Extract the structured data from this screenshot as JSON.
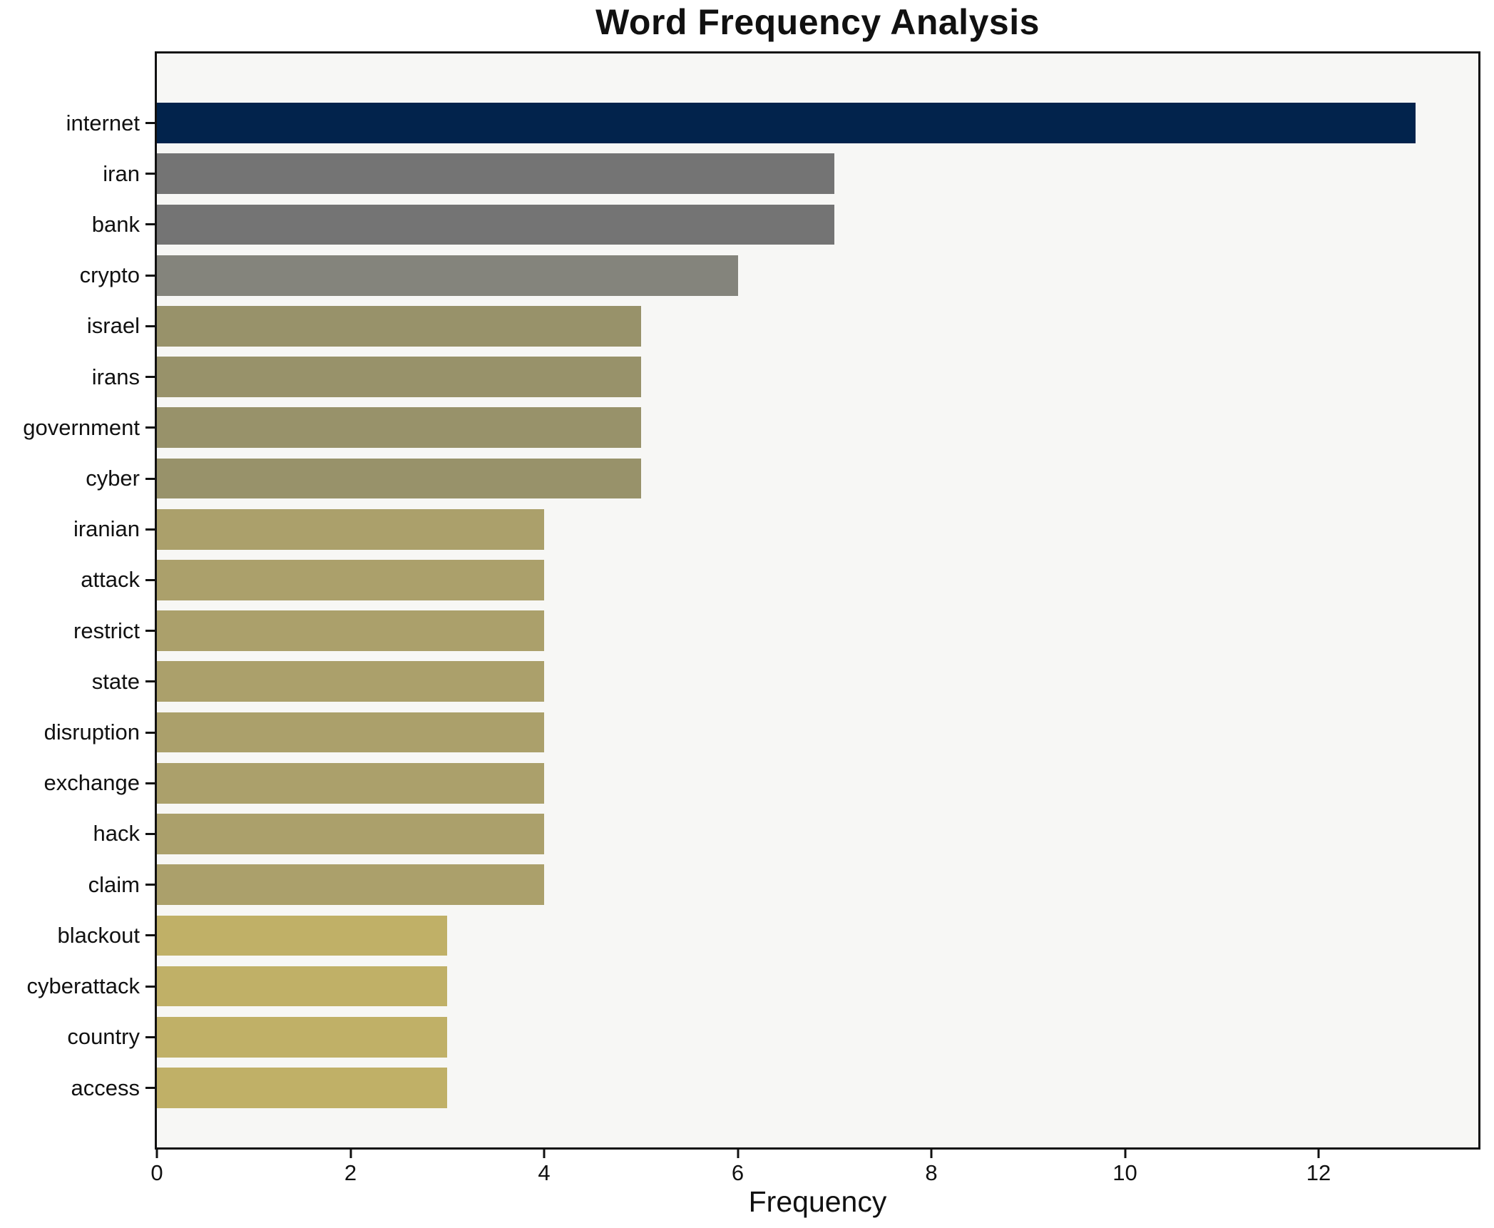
{
  "chart_data": {
    "type": "bar",
    "orientation": "horizontal",
    "title": "Word Frequency Analysis",
    "xlabel": "Frequency",
    "ylabel": "",
    "categories": [
      "internet",
      "iran",
      "bank",
      "crypto",
      "israel",
      "irans",
      "government",
      "cyber",
      "iranian",
      "attack",
      "restrict",
      "state",
      "disruption",
      "exchange",
      "hack",
      "claim",
      "blackout",
      "cyberattack",
      "country",
      "access"
    ],
    "values": [
      13,
      7,
      7,
      6,
      5,
      5,
      5,
      5,
      4,
      4,
      4,
      4,
      4,
      4,
      4,
      4,
      3,
      3,
      3,
      3
    ],
    "bar_colors": [
      "#02234C",
      "#747474",
      "#747474",
      "#84847C",
      "#98926A",
      "#98926A",
      "#98926A",
      "#98926A",
      "#ABA06B",
      "#ABA06B",
      "#ABA06B",
      "#ABA06B",
      "#ABA06B",
      "#ABA06B",
      "#ABA06B",
      "#ABA06B",
      "#C0B067",
      "#C0B067",
      "#C0B067",
      "#C0B067"
    ],
    "x_ticks": [
      0,
      2,
      4,
      6,
      8,
      10,
      12
    ],
    "xlim": [
      0,
      13.65
    ],
    "grid": false,
    "legend": false,
    "plot_background": "#F7F7F5",
    "figure_background": "#FFFFFF",
    "axis_color": "#111111",
    "highlight_color": "#02234C"
  }
}
